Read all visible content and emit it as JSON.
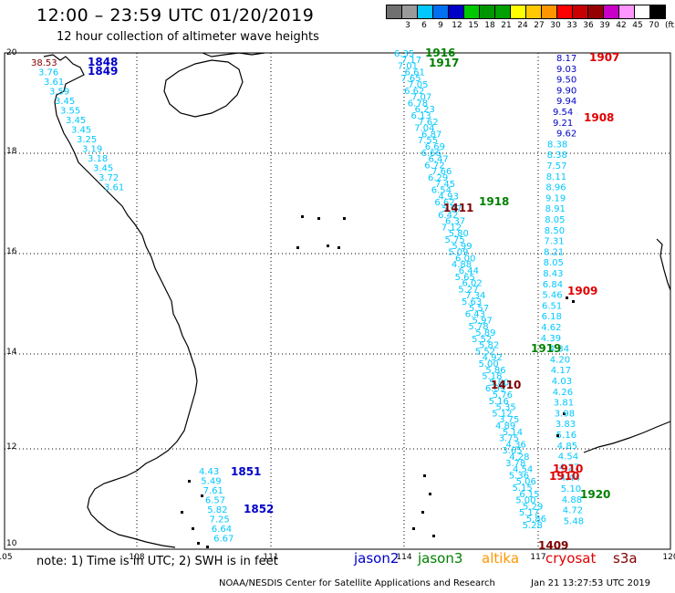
{
  "header": {
    "title": "12:00 – 23:59 UTC 01/20/2019",
    "subtitle": "12 hour collection of altimeter wave heights"
  },
  "scale": {
    "colors": [
      "#707070",
      "#9a9a9a",
      "#00c8ff",
      "#0070f0",
      "#0000c8",
      "#00c800",
      "#009600",
      "#00a000",
      "#ffff00",
      "#ffc800",
      "#ff9600",
      "#ff0000",
      "#c80000",
      "#960000",
      "#c800c8",
      "#ff96ff",
      "#ffffff",
      "#000000"
    ],
    "ticks": [
      "3",
      "6",
      "9",
      "12",
      "15",
      "18",
      "21",
      "24",
      "27",
      "30",
      "33",
      "36",
      "39",
      "42",
      "45",
      "70"
    ],
    "unit": "(ft)"
  },
  "axes": {
    "x_ticks": [
      "105",
      "108",
      "111",
      "114",
      "117",
      "120"
    ],
    "y_ticks": [
      "20",
      "18",
      "16",
      "14",
      "12",
      "10"
    ]
  },
  "passes": [
    {
      "label": "1848",
      "color": "#0000c8"
    },
    {
      "label": "1849",
      "color": "#0000c8"
    },
    {
      "label": "1851",
      "color": "#0000c8"
    },
    {
      "label": "1852",
      "color": "#0000c8"
    },
    {
      "label": "1916",
      "color": "#008000"
    },
    {
      "label": "1917",
      "color": "#008000"
    },
    {
      "label": "1918",
      "color": "#008000"
    },
    {
      "label": "1919",
      "color": "#008000"
    },
    {
      "label": "1920",
      "color": "#008000"
    },
    {
      "label": "1907",
      "color": "#e00000"
    },
    {
      "label": "1908",
      "color": "#e00000"
    },
    {
      "label": "1909",
      "color": "#e00000"
    },
    {
      "label": "1910",
      "color": "#e00000"
    },
    {
      "label": "1411",
      "color": "#800000"
    },
    {
      "label": "1410",
      "color": "#800000"
    },
    {
      "label": "1409",
      "color": "#800000"
    }
  ],
  "tracks": {
    "nw_values": [
      "38.53",
      "3.76",
      "3.61",
      "3.59",
      "3.45",
      "3.55",
      "3.45",
      "3.45",
      "3.25",
      "3.19",
      "3.18",
      "3.45",
      "3.72",
      "3.61"
    ],
    "sw_values": [
      "4.43",
      "5.49",
      "7.61",
      "6.57",
      "5.82",
      "7.25",
      "6.64",
      "6.67"
    ],
    "right_values": [
      "8.17",
      "9.03",
      "9.50",
      "9.90",
      "9.94",
      "9.54",
      "9.21",
      "9.62",
      "8.38",
      "8.38",
      "7.57",
      "8.11",
      "8.96",
      "9.19",
      "8.91",
      "8.05",
      "8.50",
      "7.31",
      "8.21",
      "8.05",
      "8.43",
      "6.84",
      "5.46",
      "6.51",
      "6.18",
      "4.62",
      "4.39",
      "4.34",
      "4.20",
      "4.17",
      "4.03",
      "4.26",
      "3.81",
      "3.98",
      "3.83",
      "5.16",
      "4.85",
      "4.54",
      "4.27",
      "4.44",
      "5.10",
      "4.88",
      "4.72",
      "5.48"
    ],
    "middle_values": [
      "6.35",
      "7.17",
      "7.01",
      "6.61",
      "7.65",
      "7.05",
      "6.62",
      "7.07",
      "6.78",
      "6.23",
      "6.13",
      "7.62",
      "7.04",
      "6.87",
      "7.55",
      "6.69",
      "6.66",
      "6.47",
      "6.72",
      "7.66",
      "6.29",
      "7.45",
      "6.54",
      "4.93",
      "6.62",
      "5.97",
      "6.42",
      "6.37",
      "7.12",
      "5.80",
      "5.75",
      "5.99",
      "5.09",
      "6.00",
      "4.88",
      "6.44",
      "5.65",
      "6.02",
      "5.27",
      "7.34",
      "5.63",
      "5.57",
      "6.43",
      "5.97",
      "5.78",
      "5.89",
      "5.52",
      "5.82",
      "5.52",
      "4.92",
      "5.00",
      "5.86",
      "5.18",
      "5.80",
      "6.09",
      "5.76",
      "5.16",
      "5.35",
      "5.12",
      "3.75",
      "4.89",
      "5.14",
      "3.75",
      "4.36",
      "3.65",
      "4.28",
      "3.78",
      "4.54",
      "5.36",
      "5.06",
      "5.15",
      "6.15",
      "5.00",
      "5.29",
      "5.17",
      "5.86",
      "5.28"
    ]
  },
  "footer": {
    "note": "note: 1) Time is in UTC; 2) SWH is in feet",
    "satellites": [
      {
        "name": "jason2",
        "color": "#0000c8"
      },
      {
        "name": "jason3",
        "color": "#008000"
      },
      {
        "name": "altika",
        "color": "#ff9600"
      },
      {
        "name": "cryosat",
        "color": "#e00000"
      },
      {
        "name": "s3a",
        "color": "#800000"
      }
    ],
    "credit": "NOAA/NESDIS Center for Satellite Applications and Research",
    "timestamp": "Jan 21 13:27:53 UTC 2019"
  }
}
